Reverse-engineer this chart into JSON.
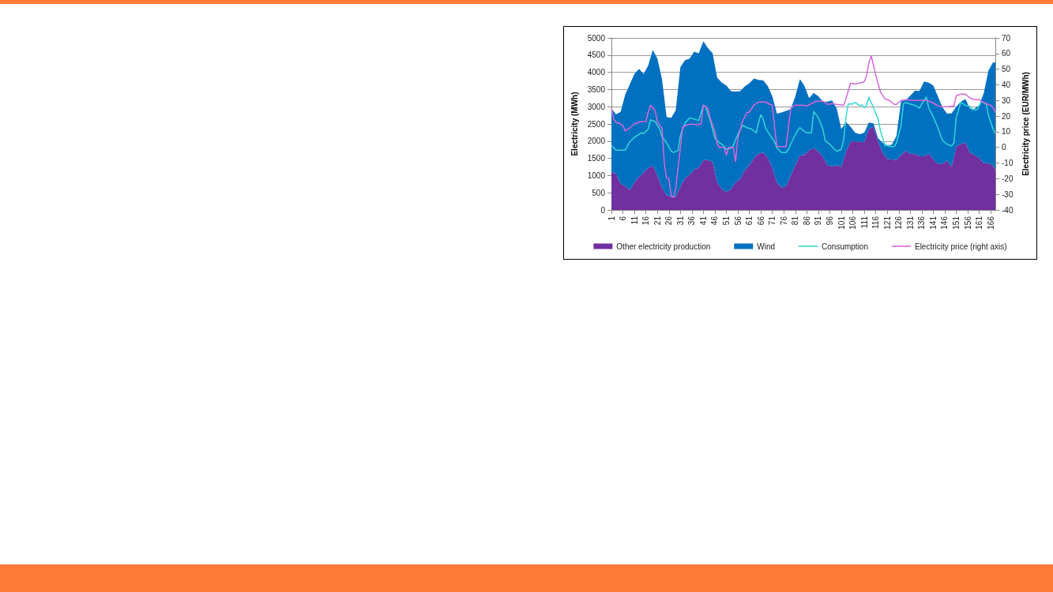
{
  "chart_data": {
    "type": "area",
    "stacked": true,
    "ylabel": "Electricity (MWh)",
    "y2label": "Electricity price (EUR/MWh)",
    "xlim": [
      1,
      168
    ],
    "xticks": [
      1,
      6,
      11,
      16,
      21,
      26,
      31,
      36,
      41,
      46,
      51,
      56,
      61,
      66,
      71,
      76,
      81,
      86,
      91,
      96,
      101,
      106,
      111,
      116,
      121,
      126,
      131,
      136,
      141,
      146,
      151,
      156,
      161,
      166
    ],
    "ylim": [
      0,
      5000
    ],
    "yticks": [
      0,
      500,
      1000,
      1500,
      2000,
      2500,
      3000,
      3500,
      4000,
      4500,
      5000
    ],
    "y2lim": [
      -40,
      70
    ],
    "y2ticks": [
      -40,
      -30,
      -20,
      -10,
      0,
      10,
      20,
      30,
      40,
      50,
      60,
      70
    ],
    "grid": "y",
    "legend": "bottom",
    "marker": "none",
    "series": [
      {
        "name": "Other electricity production",
        "color": "#7030a0",
        "x": [
          1,
          3,
          5,
          7,
          9,
          11,
          13,
          15,
          17,
          19,
          21,
          23,
          25,
          27,
          29,
          31,
          33,
          35,
          37,
          39,
          41,
          43,
          45,
          47,
          49,
          51,
          53,
          55,
          57,
          59,
          61,
          63,
          65,
          67,
          69,
          71,
          73,
          75,
          77,
          79,
          81,
          83,
          85,
          87,
          89,
          91,
          93,
          95,
          97,
          99,
          101,
          103,
          105,
          107,
          109,
          111,
          113,
          115,
          117,
          119,
          121,
          123,
          125,
          127,
          129,
          131,
          133,
          135,
          137,
          139,
          141,
          143,
          145,
          147,
          149,
          151,
          153,
          155,
          157,
          159,
          161,
          163,
          165,
          167,
          168
        ],
        "values": [
          1105,
          1050,
          760,
          690,
          580,
          790,
          960,
          1080,
          1220,
          1290,
          1000,
          650,
          430,
          370,
          380,
          680,
          920,
          1020,
          1170,
          1230,
          1450,
          1450,
          1400,
          800,
          600,
          520,
          600,
          800,
          900,
          1150,
          1300,
          1500,
          1640,
          1670,
          1520,
          1215,
          800,
          650,
          700,
          1000,
          1300,
          1580,
          1600,
          1740,
          1800,
          1700,
          1550,
          1300,
          1260,
          1300,
          1250,
          1700,
          1980,
          2000,
          1980,
          1980,
          2350,
          2420,
          2000,
          1650,
          1480,
          1470,
          1450,
          1590,
          1720,
          1630,
          1620,
          1560,
          1560,
          1640,
          1470,
          1330,
          1350,
          1440,
          1250,
          1850,
          1910,
          1960,
          1650,
          1600,
          1500,
          1360,
          1360,
          1285,
          1175
        ]
      },
      {
        "name": "Wind",
        "color": "#0070c0",
        "x": [
          1,
          3,
          5,
          7,
          9,
          11,
          13,
          15,
          17,
          19,
          21,
          23,
          25,
          27,
          29,
          31,
          33,
          35,
          37,
          39,
          41,
          43,
          45,
          47,
          49,
          51,
          53,
          55,
          57,
          59,
          61,
          63,
          65,
          67,
          69,
          71,
          73,
          75,
          77,
          79,
          81,
          83,
          85,
          87,
          89,
          91,
          93,
          95,
          97,
          99,
          101,
          103,
          105,
          107,
          109,
          111,
          113,
          115,
          117,
          119,
          121,
          123,
          125,
          127,
          129,
          131,
          133,
          135,
          137,
          139,
          141,
          143,
          145,
          147,
          149,
          151,
          153,
          155,
          157,
          159,
          161,
          163,
          165,
          167,
          168
        ],
        "values": [
          1845,
          1730,
          2090,
          2660,
          3070,
          3160,
          3140,
          2870,
          2980,
          3360,
          3400,
          3150,
          2270,
          2310,
          2520,
          3470,
          3430,
          3380,
          3430,
          3320,
          3450,
          3250,
          3150,
          3050,
          3100,
          3100,
          2850,
          2640,
          2550,
          2440,
          2380,
          2320,
          2140,
          2100,
          2080,
          2085,
          2000,
          2180,
          2180,
          1930,
          2000,
          2220,
          2000,
          1510,
          1600,
          1600,
          1600,
          1850,
          1920,
          1650,
          1100,
          850,
          440,
          250,
          220,
          270,
          190,
          95,
          90,
          300,
          400,
          430,
          700,
          1570,
          1470,
          1690,
          1845,
          1900,
          2175,
          2060,
          2150,
          1970,
          1630,
          1360,
          1560,
          1150,
          1240,
          1260,
          1290,
          1340,
          1550,
          2040,
          2690,
          3005,
          3110
        ]
      },
      {
        "name": "Consumption",
        "type": "line",
        "color": "#33d6d6",
        "x": [
          1,
          3,
          7,
          9,
          11,
          14,
          15,
          17,
          18,
          20,
          22,
          23,
          25,
          27,
          28,
          30,
          31,
          33,
          35,
          37,
          39,
          41,
          42,
          44,
          46,
          48,
          49,
          51,
          53,
          54,
          56,
          58,
          60,
          62,
          64,
          65,
          66,
          67,
          68,
          70,
          72,
          73,
          75,
          77,
          78,
          80,
          82,
          83,
          85,
          86,
          88,
          89,
          91,
          93,
          94,
          96,
          98,
          99,
          101,
          102,
          103,
          104,
          106,
          107,
          109,
          110,
          111,
          112,
          113,
          115,
          117,
          118,
          120,
          121,
          123,
          124,
          125,
          127,
          128,
          129,
          131,
          133,
          135,
          136,
          138,
          139,
          141,
          143,
          145,
          147,
          149,
          150,
          151,
          153,
          155,
          157,
          158,
          160,
          162,
          164,
          165,
          167,
          168
        ],
        "values": [
          1870,
          1740,
          1740,
          1980,
          2110,
          2240,
          2220,
          2350,
          2620,
          2570,
          2350,
          2130,
          1950,
          1710,
          1670,
          1730,
          2170,
          2530,
          2680,
          2640,
          2600,
          3050,
          3000,
          2600,
          2090,
          1950,
          1910,
          1760,
          1800,
          1870,
          2200,
          2460,
          2390,
          2350,
          2240,
          2530,
          2770,
          2640,
          2390,
          2170,
          1980,
          1800,
          1670,
          1670,
          1760,
          2060,
          2310,
          2390,
          2280,
          2240,
          2240,
          2860,
          2680,
          2350,
          2010,
          1910,
          1760,
          1710,
          1760,
          2020,
          2680,
          3080,
          3080,
          3120,
          3030,
          3060,
          2970,
          3040,
          3280,
          2970,
          2640,
          2310,
          1870,
          1870,
          1840,
          1840,
          1950,
          2460,
          3080,
          3120,
          3080,
          3040,
          2960,
          3080,
          3280,
          2970,
          2710,
          2390,
          2020,
          1910,
          1860,
          1950,
          2680,
          3130,
          3040,
          3010,
          2910,
          2910,
          3150,
          3080,
          2750,
          2350,
          2220
        ]
      },
      {
        "name": "Electricity price (right axis)",
        "type": "line",
        "axis": "y2",
        "color": "#d966d9",
        "x": [
          1,
          2,
          3,
          5,
          6,
          7,
          9,
          11,
          14,
          16,
          17,
          18,
          19,
          20,
          21,
          22,
          23,
          24,
          25,
          26,
          27,
          28,
          29,
          31,
          32,
          34,
          36,
          38,
          40,
          41,
          42,
          43,
          44,
          46,
          47,
          48,
          50,
          51,
          52,
          54,
          55,
          56,
          58,
          60,
          61,
          63,
          65,
          68,
          70,
          71,
          72,
          73,
          77,
          79,
          81,
          84,
          86,
          88,
          90,
          93,
          95,
          97,
          99,
          102,
          103,
          105,
          107,
          110,
          111,
          112,
          113,
          114,
          115,
          116,
          118,
          120,
          122,
          124,
          125,
          127,
          129,
          132,
          135,
          138,
          140,
          142,
          144,
          147,
          150,
          151,
          153,
          155,
          157,
          159,
          161,
          162,
          164,
          166,
          167,
          168
        ],
        "values": [
          25,
          18,
          16,
          15,
          14,
          10.5,
          12.5,
          15,
          16.5,
          16.5,
          22.5,
          27,
          25.5,
          23.5,
          16.5,
          14,
          12.5,
          -10,
          -19.5,
          -20,
          -31,
          -32,
          -26,
          0,
          13,
          14.5,
          15,
          14.5,
          15,
          27,
          26,
          24.5,
          18.5,
          10,
          2,
          0,
          0,
          -5,
          0,
          0,
          -9,
          6,
          16.5,
          22.5,
          22.5,
          27,
          29,
          29,
          27.5,
          27,
          12.5,
          0.5,
          0.5,
          25,
          27,
          27,
          26.5,
          28,
          29.5,
          29.5,
          27.5,
          28,
          27.5,
          27,
          31,
          41,
          40.5,
          41.5,
          42,
          46,
          54,
          58.5,
          52.5,
          46,
          35.5,
          31,
          30,
          27.5,
          27.5,
          30,
          30.5,
          30,
          30,
          30,
          29,
          27.5,
          26,
          26,
          26.5,
          33,
          34,
          34,
          31.5,
          30.5,
          30.5,
          29.5,
          28,
          27,
          25.5,
          22.5
        ]
      }
    ]
  }
}
